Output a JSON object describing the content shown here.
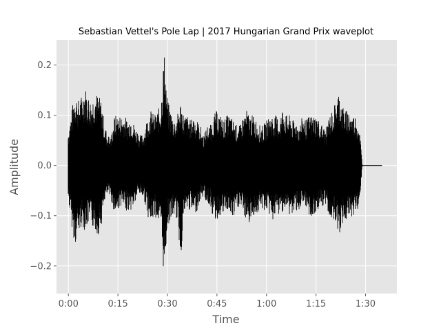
{
  "chart_data": {
    "type": "area",
    "title": "Sebastian Vettel's Pole Lap | 2017 Hungarian Grand Prix waveplot",
    "xlabel": "Time",
    "ylabel": "Amplitude",
    "x_unit": "seconds",
    "xlim": [
      -3.6,
      99.5
    ],
    "ylim": [
      -0.255,
      0.25
    ],
    "x_ticks": [
      {
        "value": 0,
        "label": "0:00"
      },
      {
        "value": 15,
        "label": "0:15"
      },
      {
        "value": 30,
        "label": "0:30"
      },
      {
        "value": 45,
        "label": "0:45"
      },
      {
        "value": 60,
        "label": "1:00"
      },
      {
        "value": 75,
        "label": "1:15"
      },
      {
        "value": 90,
        "label": "1:30"
      }
    ],
    "y_ticks": [
      {
        "value": -0.2,
        "label": "−0.2"
      },
      {
        "value": -0.1,
        "label": "−0.1"
      },
      {
        "value": 0.0,
        "label": "0.0"
      },
      {
        "value": 0.1,
        "label": "0.1"
      },
      {
        "value": 0.2,
        "label": "0.2"
      }
    ],
    "grid": true,
    "background_color": "#e5e5e5",
    "grid_color": "#ffffff",
    "wave_color": "#000000",
    "series": [
      {
        "x": [
          0,
          1,
          2,
          3,
          4,
          5,
          6,
          7,
          8,
          9,
          10,
          11,
          12,
          13,
          14,
          15,
          16,
          17,
          18,
          19,
          20,
          21,
          22,
          23,
          24,
          25,
          26,
          27,
          28,
          29,
          30,
          31,
          32,
          33,
          34,
          35,
          36,
          37,
          38,
          39,
          40,
          41,
          42,
          43,
          44,
          45,
          46,
          47,
          48,
          49,
          50,
          51,
          52,
          53,
          54,
          55,
          56,
          57,
          58,
          59,
          60,
          61,
          62,
          63,
          64,
          65,
          66,
          67,
          68,
          69,
          70,
          71,
          72,
          73,
          74,
          75,
          76,
          77,
          78,
          79,
          80,
          81,
          82,
          83,
          84,
          85,
          86,
          87,
          88,
          88.5,
          89,
          92,
          95
        ],
        "max": [
          0.07,
          0.11,
          0.15,
          0.13,
          0.14,
          0.16,
          0.14,
          0.13,
          0.15,
          0.14,
          0.13,
          0.08,
          0.06,
          0.06,
          0.1,
          0.1,
          0.1,
          0.1,
          0.09,
          0.1,
          0.08,
          0.07,
          0.06,
          0.07,
          0.1,
          0.11,
          0.1,
          0.11,
          0.12,
          0.23,
          0.13,
          0.11,
          0.09,
          0.1,
          0.13,
          0.1,
          0.1,
          0.09,
          0.1,
          0.09,
          0.08,
          0.06,
          0.08,
          0.08,
          0.1,
          0.11,
          0.1,
          0.09,
          0.1,
          0.1,
          0.09,
          0.08,
          0.08,
          0.1,
          0.11,
          0.1,
          0.1,
          0.09,
          0.08,
          0.08,
          0.09,
          0.1,
          0.1,
          0.1,
          0.09,
          0.12,
          0.1,
          0.1,
          0.09,
          0.09,
          0.08,
          0.1,
          0.09,
          0.1,
          0.1,
          0.1,
          0.09,
          0.08,
          0.07,
          0.1,
          0.11,
          0.13,
          0.15,
          0.12,
          0.11,
          0.11,
          0.1,
          0.1,
          0.08,
          0.05,
          0.0,
          0.0,
          0.0
        ],
        "min": [
          -0.07,
          -0.12,
          -0.16,
          -0.14,
          -0.12,
          -0.13,
          -0.12,
          -0.12,
          -0.13,
          -0.14,
          -0.12,
          -0.07,
          -0.06,
          -0.07,
          -0.1,
          -0.09,
          -0.08,
          -0.09,
          -0.09,
          -0.09,
          -0.08,
          -0.06,
          -0.06,
          -0.07,
          -0.1,
          -0.12,
          -0.1,
          -0.11,
          -0.13,
          -0.23,
          -0.12,
          -0.11,
          -0.1,
          -0.11,
          -0.19,
          -0.1,
          -0.09,
          -0.09,
          -0.1,
          -0.09,
          -0.07,
          -0.06,
          -0.08,
          -0.08,
          -0.11,
          -0.11,
          -0.1,
          -0.1,
          -0.09,
          -0.1,
          -0.11,
          -0.09,
          -0.08,
          -0.1,
          -0.11,
          -0.12,
          -0.1,
          -0.1,
          -0.09,
          -0.09,
          -0.09,
          -0.1,
          -0.11,
          -0.1,
          -0.1,
          -0.09,
          -0.09,
          -0.1,
          -0.1,
          -0.09,
          -0.09,
          -0.09,
          -0.09,
          -0.1,
          -0.11,
          -0.1,
          -0.08,
          -0.09,
          -0.08,
          -0.1,
          -0.11,
          -0.11,
          -0.14,
          -0.12,
          -0.11,
          -0.11,
          -0.1,
          -0.1,
          -0.08,
          -0.05,
          0.0,
          0.0,
          0.0
        ]
      }
    ]
  }
}
